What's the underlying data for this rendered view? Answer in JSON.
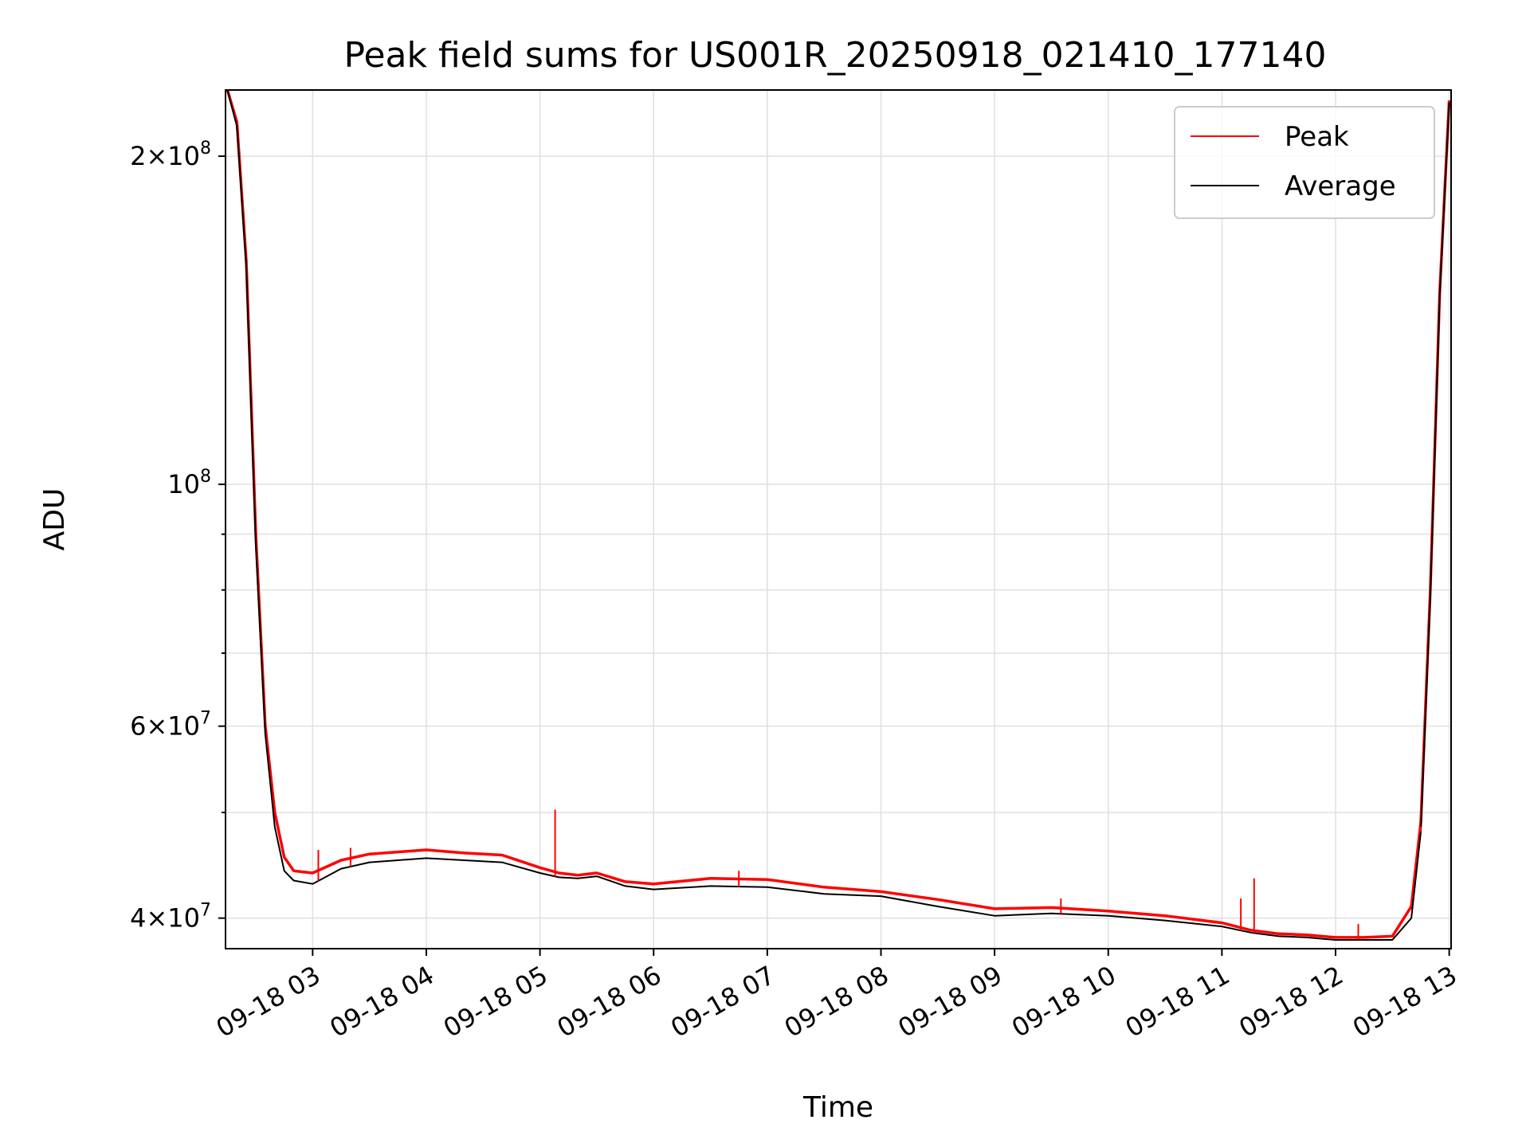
{
  "chart_data": {
    "type": "line",
    "title": "Peak field sums for US001R_20250918_021410_177140",
    "xlabel": "Time",
    "ylabel": "ADU",
    "y_scale": "log",
    "ylim": [
      37500000,
      230000000
    ],
    "xlim": [
      "2025-09-18 02:14",
      "2025-09-18 13:01"
    ],
    "x_ticks": [
      {
        "t": "2025-09-18 03:00",
        "label": "09-18 03"
      },
      {
        "t": "2025-09-18 04:00",
        "label": "09-18 04"
      },
      {
        "t": "2025-09-18 05:00",
        "label": "09-18 05"
      },
      {
        "t": "2025-09-18 06:00",
        "label": "09-18 06"
      },
      {
        "t": "2025-09-18 07:00",
        "label": "09-18 07"
      },
      {
        "t": "2025-09-18 08:00",
        "label": "09-18 08"
      },
      {
        "t": "2025-09-18 09:00",
        "label": "09-18 09"
      },
      {
        "t": "2025-09-18 10:00",
        "label": "09-18 10"
      },
      {
        "t": "2025-09-18 11:00",
        "label": "09-18 11"
      },
      {
        "t": "2025-09-18 12:00",
        "label": "09-18 12"
      },
      {
        "t": "2025-09-18 13:00",
        "label": "09-18 13"
      }
    ],
    "y_major_ticks": [
      {
        "value": 40000000,
        "mantissa": "4",
        "exponent": "7"
      },
      {
        "value": 60000000,
        "mantissa": "6",
        "exponent": "7"
      },
      {
        "value": 100000000,
        "mantissa": "",
        "exponent": "8"
      },
      {
        "value": 200000000,
        "mantissa": "2",
        "exponent": "8"
      }
    ],
    "y_minor_ticks": [
      50000000,
      70000000,
      80000000,
      90000000
    ],
    "grid": true,
    "legend": {
      "position": "top-right"
    },
    "series": [
      {
        "name": "Peak",
        "color": "#ff0000",
        "x": [
          "2025-09-18 02:15",
          "2025-09-18 02:20",
          "2025-09-18 02:25",
          "2025-09-18 02:30",
          "2025-09-18 02:35",
          "2025-09-18 02:40",
          "2025-09-18 02:45",
          "2025-09-18 02:50",
          "2025-09-18 03:00",
          "2025-09-18 03:15",
          "2025-09-18 03:30",
          "2025-09-18 03:45",
          "2025-09-18 04:00",
          "2025-09-18 04:20",
          "2025-09-18 04:40",
          "2025-09-18 05:00",
          "2025-09-18 05:10",
          "2025-09-18 05:20",
          "2025-09-18 05:30",
          "2025-09-18 05:45",
          "2025-09-18 06:00",
          "2025-09-18 06:30",
          "2025-09-18 07:00",
          "2025-09-18 07:30",
          "2025-09-18 08:00",
          "2025-09-18 08:30",
          "2025-09-18 09:00",
          "2025-09-18 09:30",
          "2025-09-18 10:00",
          "2025-09-18 10:30",
          "2025-09-18 11:00",
          "2025-09-18 11:15",
          "2025-09-18 11:30",
          "2025-09-18 11:45",
          "2025-09-18 12:00",
          "2025-09-18 12:15",
          "2025-09-18 12:30",
          "2025-09-18 12:40",
          "2025-09-18 12:45",
          "2025-09-18 12:50",
          "2025-09-18 12:55",
          "2025-09-18 13:00"
        ],
        "y": [
          230000000,
          215000000,
          160000000,
          90000000,
          60000000,
          50000000,
          45500000,
          44200000,
          44000000,
          45200000,
          45800000,
          46000000,
          46200000,
          45900000,
          45700000,
          44500000,
          44000000,
          43800000,
          44000000,
          43200000,
          43000000,
          43500000,
          43400000,
          42700000,
          42300000,
          41600000,
          40800000,
          40900000,
          40600000,
          40200000,
          39600000,
          39000000,
          38700000,
          38600000,
          38400000,
          38400000,
          38500000,
          41000000,
          49000000,
          80000000,
          150000000,
          225000000
        ],
        "spikes": [
          {
            "t": "2025-09-18 03:03",
            "value": 46200000
          },
          {
            "t": "2025-09-18 03:20",
            "value": 46400000
          },
          {
            "t": "2025-09-18 05:08",
            "value": 50300000
          },
          {
            "t": "2025-09-18 06:45",
            "value": 44200000
          },
          {
            "t": "2025-09-18 09:35",
            "value": 41700000
          },
          {
            "t": "2025-09-18 11:10",
            "value": 41700000
          },
          {
            "t": "2025-09-18 11:17",
            "value": 43500000
          },
          {
            "t": "2025-09-18 12:12",
            "value": 39500000
          },
          {
            "t": "2025-09-18 12:45",
            "value": 48500000
          }
        ]
      },
      {
        "name": "Average",
        "color": "#000000",
        "x": [
          "2025-09-18 02:15",
          "2025-09-18 02:20",
          "2025-09-18 02:25",
          "2025-09-18 02:30",
          "2025-09-18 02:35",
          "2025-09-18 02:40",
          "2025-09-18 02:45",
          "2025-09-18 02:50",
          "2025-09-18 03:00",
          "2025-09-18 03:15",
          "2025-09-18 03:30",
          "2025-09-18 03:45",
          "2025-09-18 04:00",
          "2025-09-18 04:20",
          "2025-09-18 04:40",
          "2025-09-18 05:00",
          "2025-09-18 05:10",
          "2025-09-18 05:20",
          "2025-09-18 05:30",
          "2025-09-18 05:45",
          "2025-09-18 06:00",
          "2025-09-18 06:30",
          "2025-09-18 07:00",
          "2025-09-18 07:30",
          "2025-09-18 08:00",
          "2025-09-18 08:30",
          "2025-09-18 09:00",
          "2025-09-18 09:30",
          "2025-09-18 10:00",
          "2025-09-18 10:30",
          "2025-09-18 11:00",
          "2025-09-18 11:15",
          "2025-09-18 11:30",
          "2025-09-18 11:45",
          "2025-09-18 12:00",
          "2025-09-18 12:15",
          "2025-09-18 12:30",
          "2025-09-18 12:40",
          "2025-09-18 12:45",
          "2025-09-18 12:50",
          "2025-09-18 12:55",
          "2025-09-18 13:00"
        ],
        "y": [
          230000000,
          213000000,
          158000000,
          88000000,
          59000000,
          48500000,
          44200000,
          43300000,
          43000000,
          44400000,
          45000000,
          45200000,
          45400000,
          45200000,
          45000000,
          44000000,
          43600000,
          43500000,
          43700000,
          42800000,
          42500000,
          42800000,
          42700000,
          42100000,
          41900000,
          41000000,
          40200000,
          40400000,
          40200000,
          39800000,
          39300000,
          38800000,
          38500000,
          38400000,
          38200000,
          38200000,
          38200000,
          40000000,
          48000000,
          79000000,
          149000000,
          224000000
        ]
      }
    ]
  }
}
